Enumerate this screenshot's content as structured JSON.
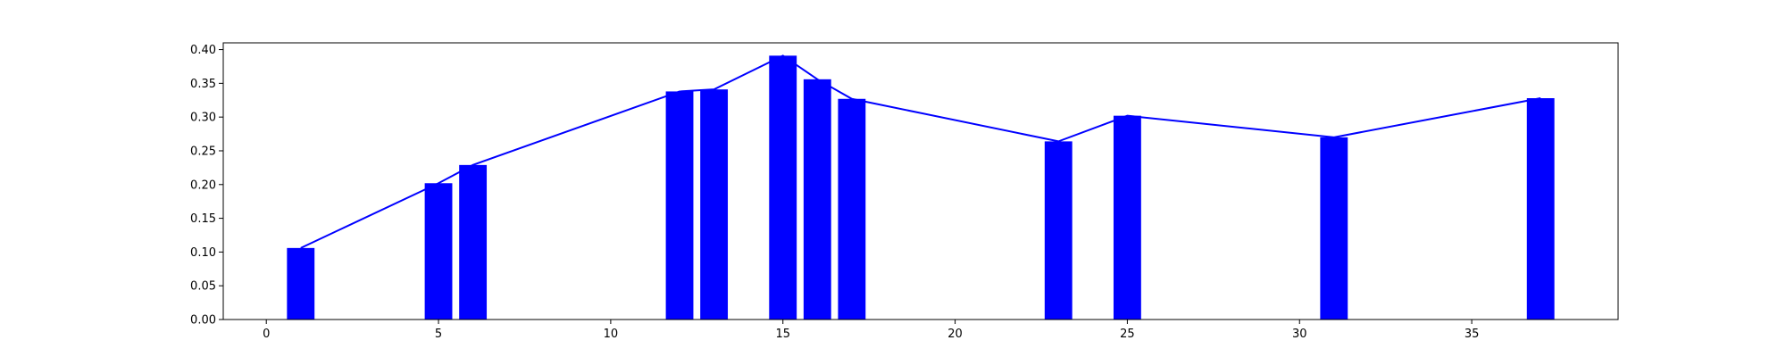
{
  "chart_data": {
    "type": "bar",
    "title": "",
    "xlabel": "",
    "ylabel": "",
    "x": [
      1,
      5,
      6,
      12,
      13,
      15,
      16,
      17,
      23,
      25,
      31,
      37
    ],
    "values": [
      0.106,
      0.202,
      0.229,
      0.338,
      0.341,
      0.391,
      0.356,
      0.327,
      0.264,
      0.302,
      0.27,
      0.328
    ],
    "line_overlay": true,
    "xlim": [
      -1.25,
      39.25
    ],
    "ylim": [
      0.0,
      0.41
    ],
    "xticks": [
      0,
      5,
      10,
      15,
      20,
      25,
      30,
      35
    ],
    "yticks": [
      0.0,
      0.05,
      0.1,
      0.15,
      0.2,
      0.25,
      0.3,
      0.35,
      0.4
    ],
    "xtick_labels": [
      "0",
      "5",
      "10",
      "15",
      "20",
      "25",
      "30",
      "35"
    ],
    "ytick_labels": [
      "0.00",
      "0.05",
      "0.10",
      "0.15",
      "0.20",
      "0.25",
      "0.30",
      "0.35",
      "0.40"
    ],
    "bar_color": "#0000ff",
    "line_color": "#0000ff",
    "grid": false,
    "legend": "none"
  }
}
